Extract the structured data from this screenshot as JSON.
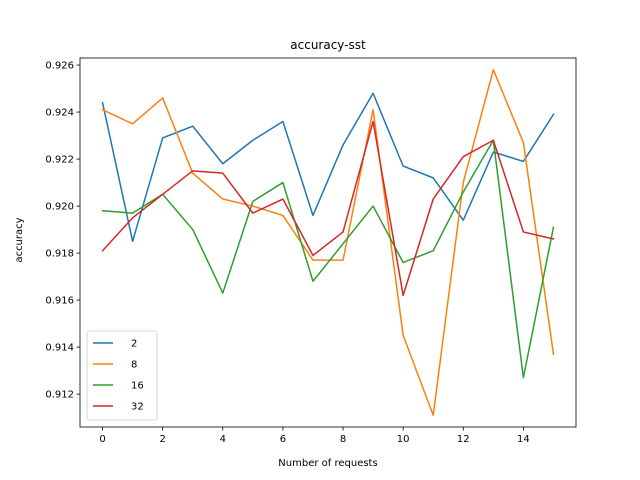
{
  "chart_data": {
    "type": "line",
    "title": "accuracy-sst",
    "xlabel": "Number of requests",
    "ylabel": "accuracy",
    "x": [
      0,
      1,
      2,
      3,
      4,
      5,
      6,
      7,
      8,
      9,
      10,
      11,
      12,
      13,
      14,
      15
    ],
    "xlim": [
      -0.75,
      15.75
    ],
    "ylim": [
      0.9106,
      0.9263
    ],
    "xticks": [
      0,
      2,
      4,
      6,
      8,
      10,
      12,
      14
    ],
    "yticks": [
      0.912,
      0.914,
      0.916,
      0.918,
      0.92,
      0.922,
      0.924,
      0.926
    ],
    "grid": false,
    "legend_position": "lower-left",
    "series": [
      {
        "name": "2",
        "color": "#1f77b4",
        "values": [
          0.9244,
          0.9185,
          0.9229,
          0.9234,
          0.9218,
          0.9228,
          0.9236,
          0.9196,
          0.9226,
          0.9248,
          0.9217,
          0.9212,
          0.9194,
          0.9223,
          0.9219,
          0.9239
        ]
      },
      {
        "name": "8",
        "color": "#ff7f0e",
        "values": [
          0.9241,
          0.9235,
          0.9246,
          0.9214,
          0.9203,
          0.92,
          0.9196,
          0.9177,
          0.9177,
          0.9241,
          0.9145,
          0.9111,
          0.921,
          0.9258,
          0.9227,
          0.9137
        ]
      },
      {
        "name": "16",
        "color": "#2ca02c",
        "values": [
          0.9198,
          0.9197,
          0.9205,
          0.919,
          0.9163,
          0.9202,
          0.921,
          0.9168,
          0.9184,
          0.92,
          0.9176,
          0.9181,
          0.9206,
          0.9228,
          0.9127,
          0.9191
        ]
      },
      {
        "name": "32",
        "color": "#d62728",
        "values": [
          0.9181,
          0.9195,
          0.9205,
          0.9215,
          0.9214,
          0.9197,
          0.9203,
          0.9179,
          0.9189,
          0.9236,
          0.9162,
          0.9203,
          0.9221,
          0.9228,
          0.9189,
          0.9186
        ]
      }
    ]
  }
}
